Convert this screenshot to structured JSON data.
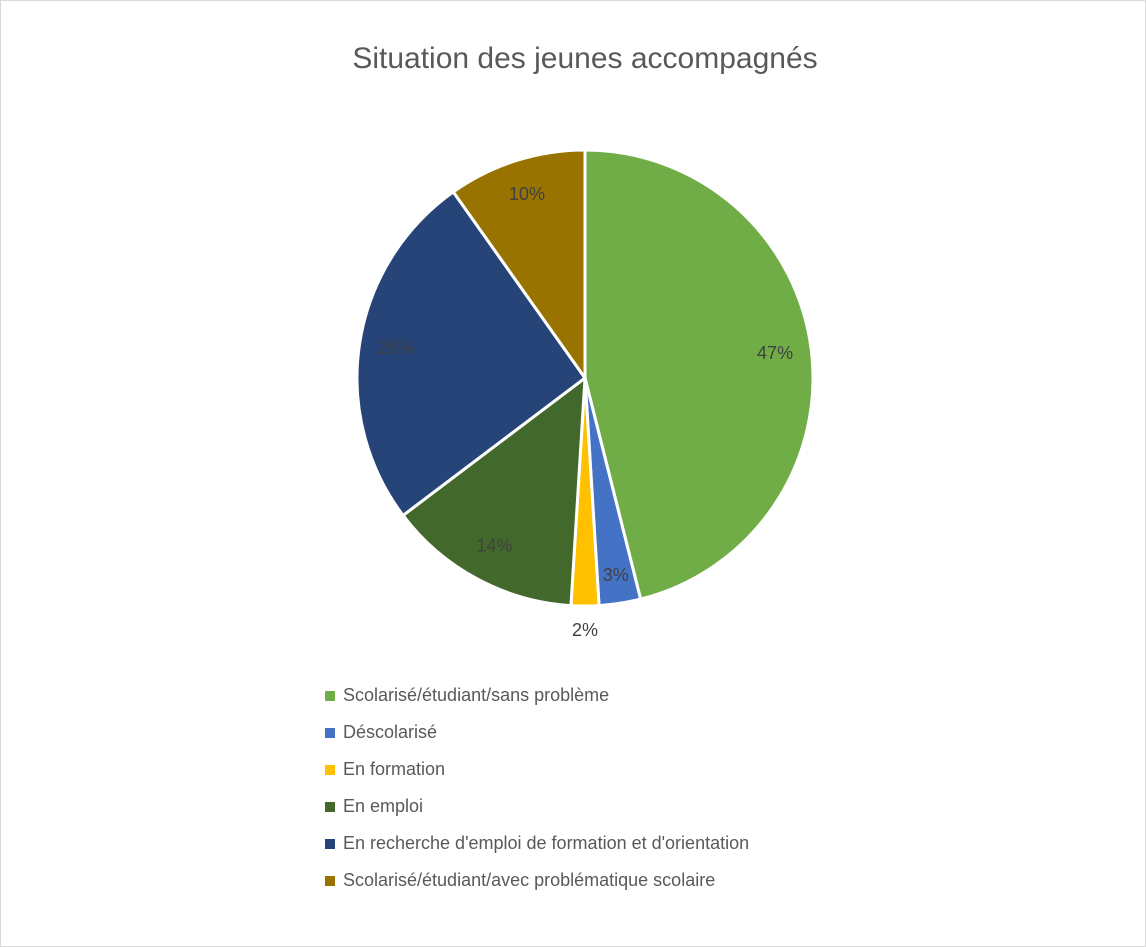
{
  "chart_data": {
    "type": "pie",
    "title": "Situation des jeunes accompagnés",
    "categories": [
      "Scolarisé/étudiant/sans problème",
      "Déscolarisé",
      "En formation",
      "En emploi",
      "En recherche d'emploi de formation et d'orientation",
      "Scolarisé/étudiant/avec problématique scolaire"
    ],
    "values": [
      47,
      3,
      2,
      14,
      26,
      10
    ],
    "value_labels": [
      "47%",
      "3%",
      "2%",
      "14%",
      "26%",
      "10%"
    ],
    "colors": [
      "#70ad47",
      "#4472c4",
      "#ffc000",
      "#43682b",
      "#264478",
      "#997300"
    ],
    "legend": "bottom"
  }
}
